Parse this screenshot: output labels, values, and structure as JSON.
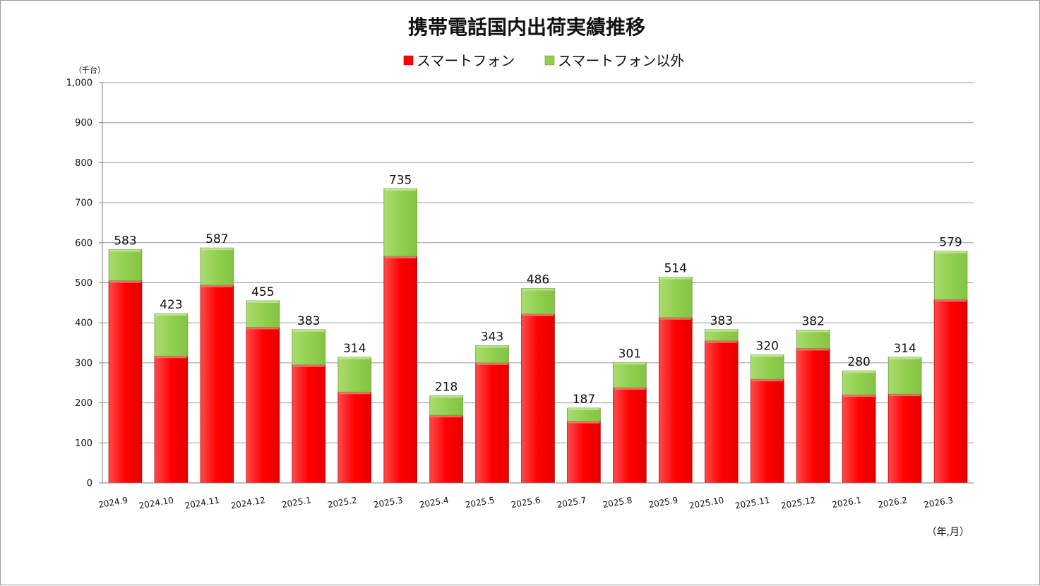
{
  "chart_data": {
    "type": "bar",
    "stacked": true,
    "title": "携帯電話国内出荷実績推移",
    "ylabel": "（千台）",
    "xlabel": "（年,月）",
    "ylim": [
      0,
      1000
    ],
    "yticks": [
      0,
      100,
      200,
      300,
      400,
      500,
      600,
      700,
      800,
      900,
      1000
    ],
    "ytick_labels": [
      "0",
      "100",
      "200",
      "300",
      "400",
      "500",
      "600",
      "700",
      "800",
      "900",
      "1,000"
    ],
    "grid": true,
    "legend_position": "top-center",
    "categories": [
      "2024.9",
      "2024.10",
      "2024.11",
      "2024.12",
      "2025.1",
      "2025.2",
      "2025.3",
      "2025.4",
      "2025.5",
      "2025.6",
      "2025.7",
      "2025.8",
      "2025.9",
      "2025.10",
      "2025.11",
      "2025.12",
      "2026.1",
      "2026.2",
      "2026.3"
    ],
    "series": [
      {
        "name": "スマートフォン",
        "color": "#ff0000",
        "values": [
          505,
          317,
          494,
          389,
          295,
          227,
          566,
          169,
          300,
          422,
          154,
          238,
          413,
          355,
          259,
          336,
          220,
          222,
          458
        ]
      },
      {
        "name": "スマートフォン以外",
        "color": "#92d050",
        "values": [
          78,
          106,
          93,
          66,
          88,
          87,
          169,
          49,
          43,
          64,
          33,
          63,
          101,
          28,
          61,
          46,
          60,
          92,
          121
        ]
      }
    ],
    "totals": [
      583,
      423,
      587,
      455,
      383,
      314,
      735,
      218,
      343,
      486,
      187,
      301,
      514,
      383,
      320,
      382,
      280,
      314,
      579
    ]
  }
}
